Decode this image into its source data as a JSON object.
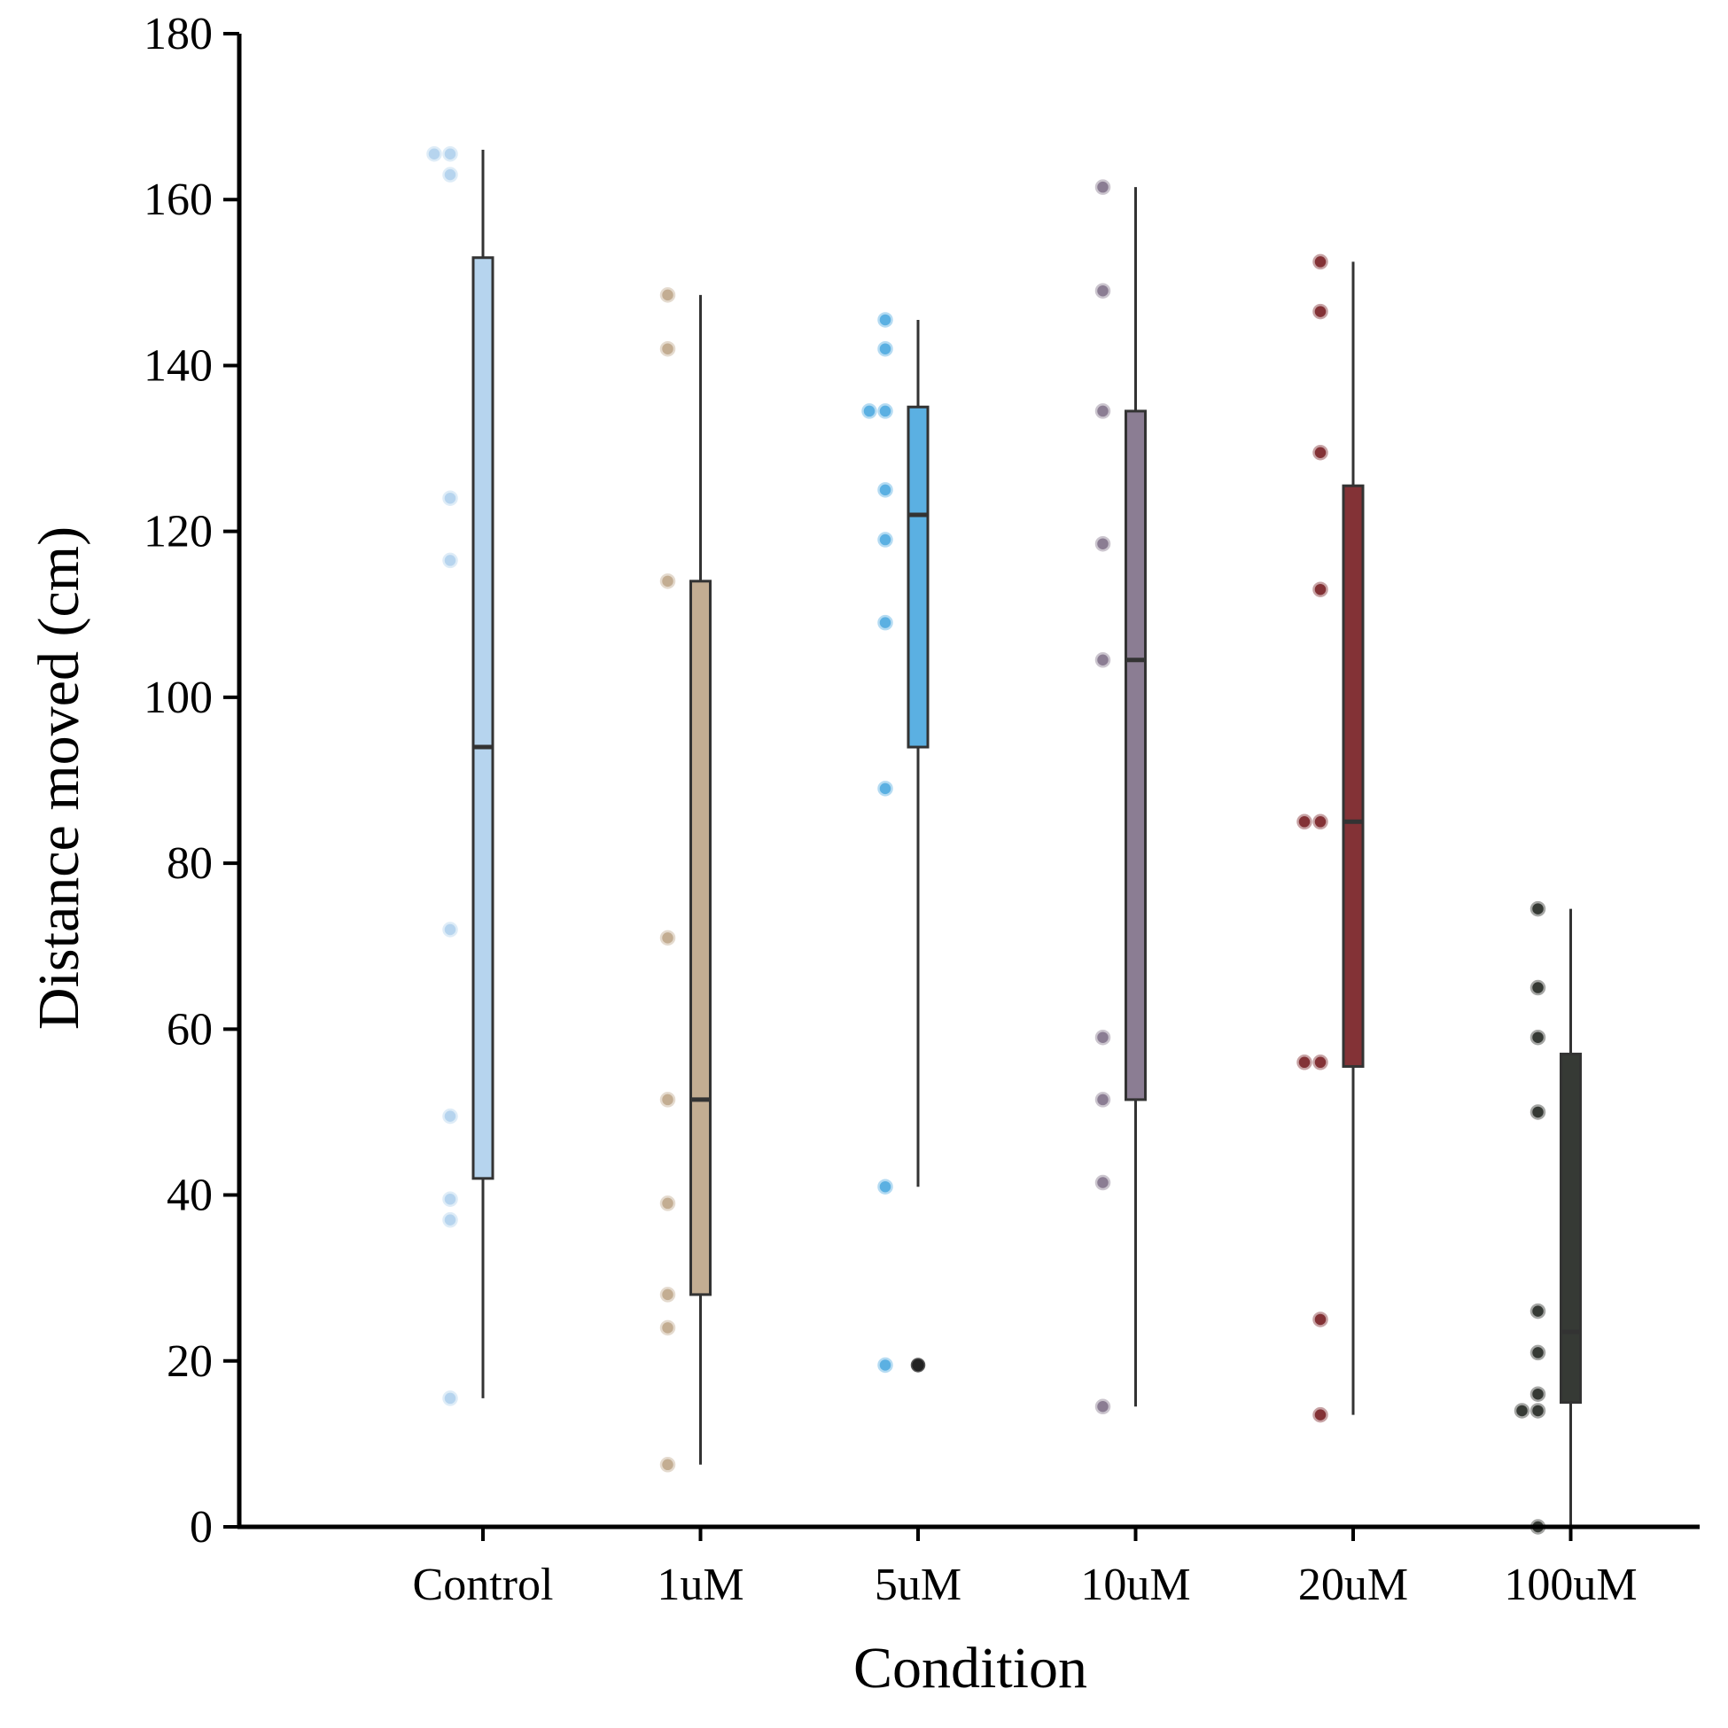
{
  "chart_data": {
    "type": "box",
    "title": "",
    "xlabel": "Condition",
    "ylabel": "Distance moved (cm)",
    "ylim": [
      0,
      180
    ],
    "yticks": [
      0,
      20,
      40,
      60,
      80,
      100,
      120,
      140,
      160,
      180
    ],
    "grid": false,
    "legend": "none",
    "categories": [
      "Control",
      "1uM",
      "5uM",
      "10uM",
      "20uM",
      "100uM"
    ],
    "series": [
      {
        "category": "Control",
        "color": "#b6d4ee",
        "whisker_low": 15.5,
        "q1": 42,
        "median": 94,
        "q3": 153,
        "whisker_high": 166,
        "outliers": [],
        "points": [
          165.5,
          165.5,
          163,
          124,
          116.5,
          72,
          49.5,
          39.5,
          37,
          15.5
        ]
      },
      {
        "category": "1uM",
        "color": "#c3ad92",
        "whisker_low": 7.5,
        "q1": 28,
        "median": 51.5,
        "q3": 114,
        "whisker_high": 148.5,
        "outliers": [],
        "points": [
          148.5,
          142,
          114,
          71,
          51.5,
          39,
          28,
          24,
          7.5
        ]
      },
      {
        "category": "5uM",
        "color": "#5bb0e2",
        "whisker_low": 41,
        "q1": 94,
        "median": 122,
        "q3": 135,
        "whisker_high": 145.5,
        "outliers": [
          19.5
        ],
        "points": [
          145.5,
          142,
          134.5,
          134.5,
          125,
          119,
          109,
          89,
          41,
          19.5
        ]
      },
      {
        "category": "10uM",
        "color": "#8b7d93",
        "whisker_low": 14.5,
        "q1": 51.5,
        "median": 104.5,
        "q3": 134.5,
        "whisker_high": 161.5,
        "outliers": [],
        "points": [
          161.5,
          149,
          134.5,
          118.5,
          104.5,
          59,
          51.5,
          41.5,
          14.5
        ]
      },
      {
        "category": "20uM",
        "color": "#833236",
        "whisker_low": 13.5,
        "q1": 55.5,
        "median": 85,
        "q3": 125.5,
        "whisker_high": 152.5,
        "outliers": [],
        "points": [
          152.5,
          146.5,
          129.5,
          113,
          85,
          85,
          56,
          56,
          25,
          13.5
        ]
      },
      {
        "category": "100uM",
        "color": "#363a35",
        "whisker_low": 0,
        "q1": 15,
        "median": 23.5,
        "q3": 57,
        "whisker_high": 74.5,
        "outliers": [],
        "points": [
          74.5,
          65,
          59,
          50,
          26,
          21,
          16,
          14,
          14,
          0
        ]
      }
    ]
  }
}
